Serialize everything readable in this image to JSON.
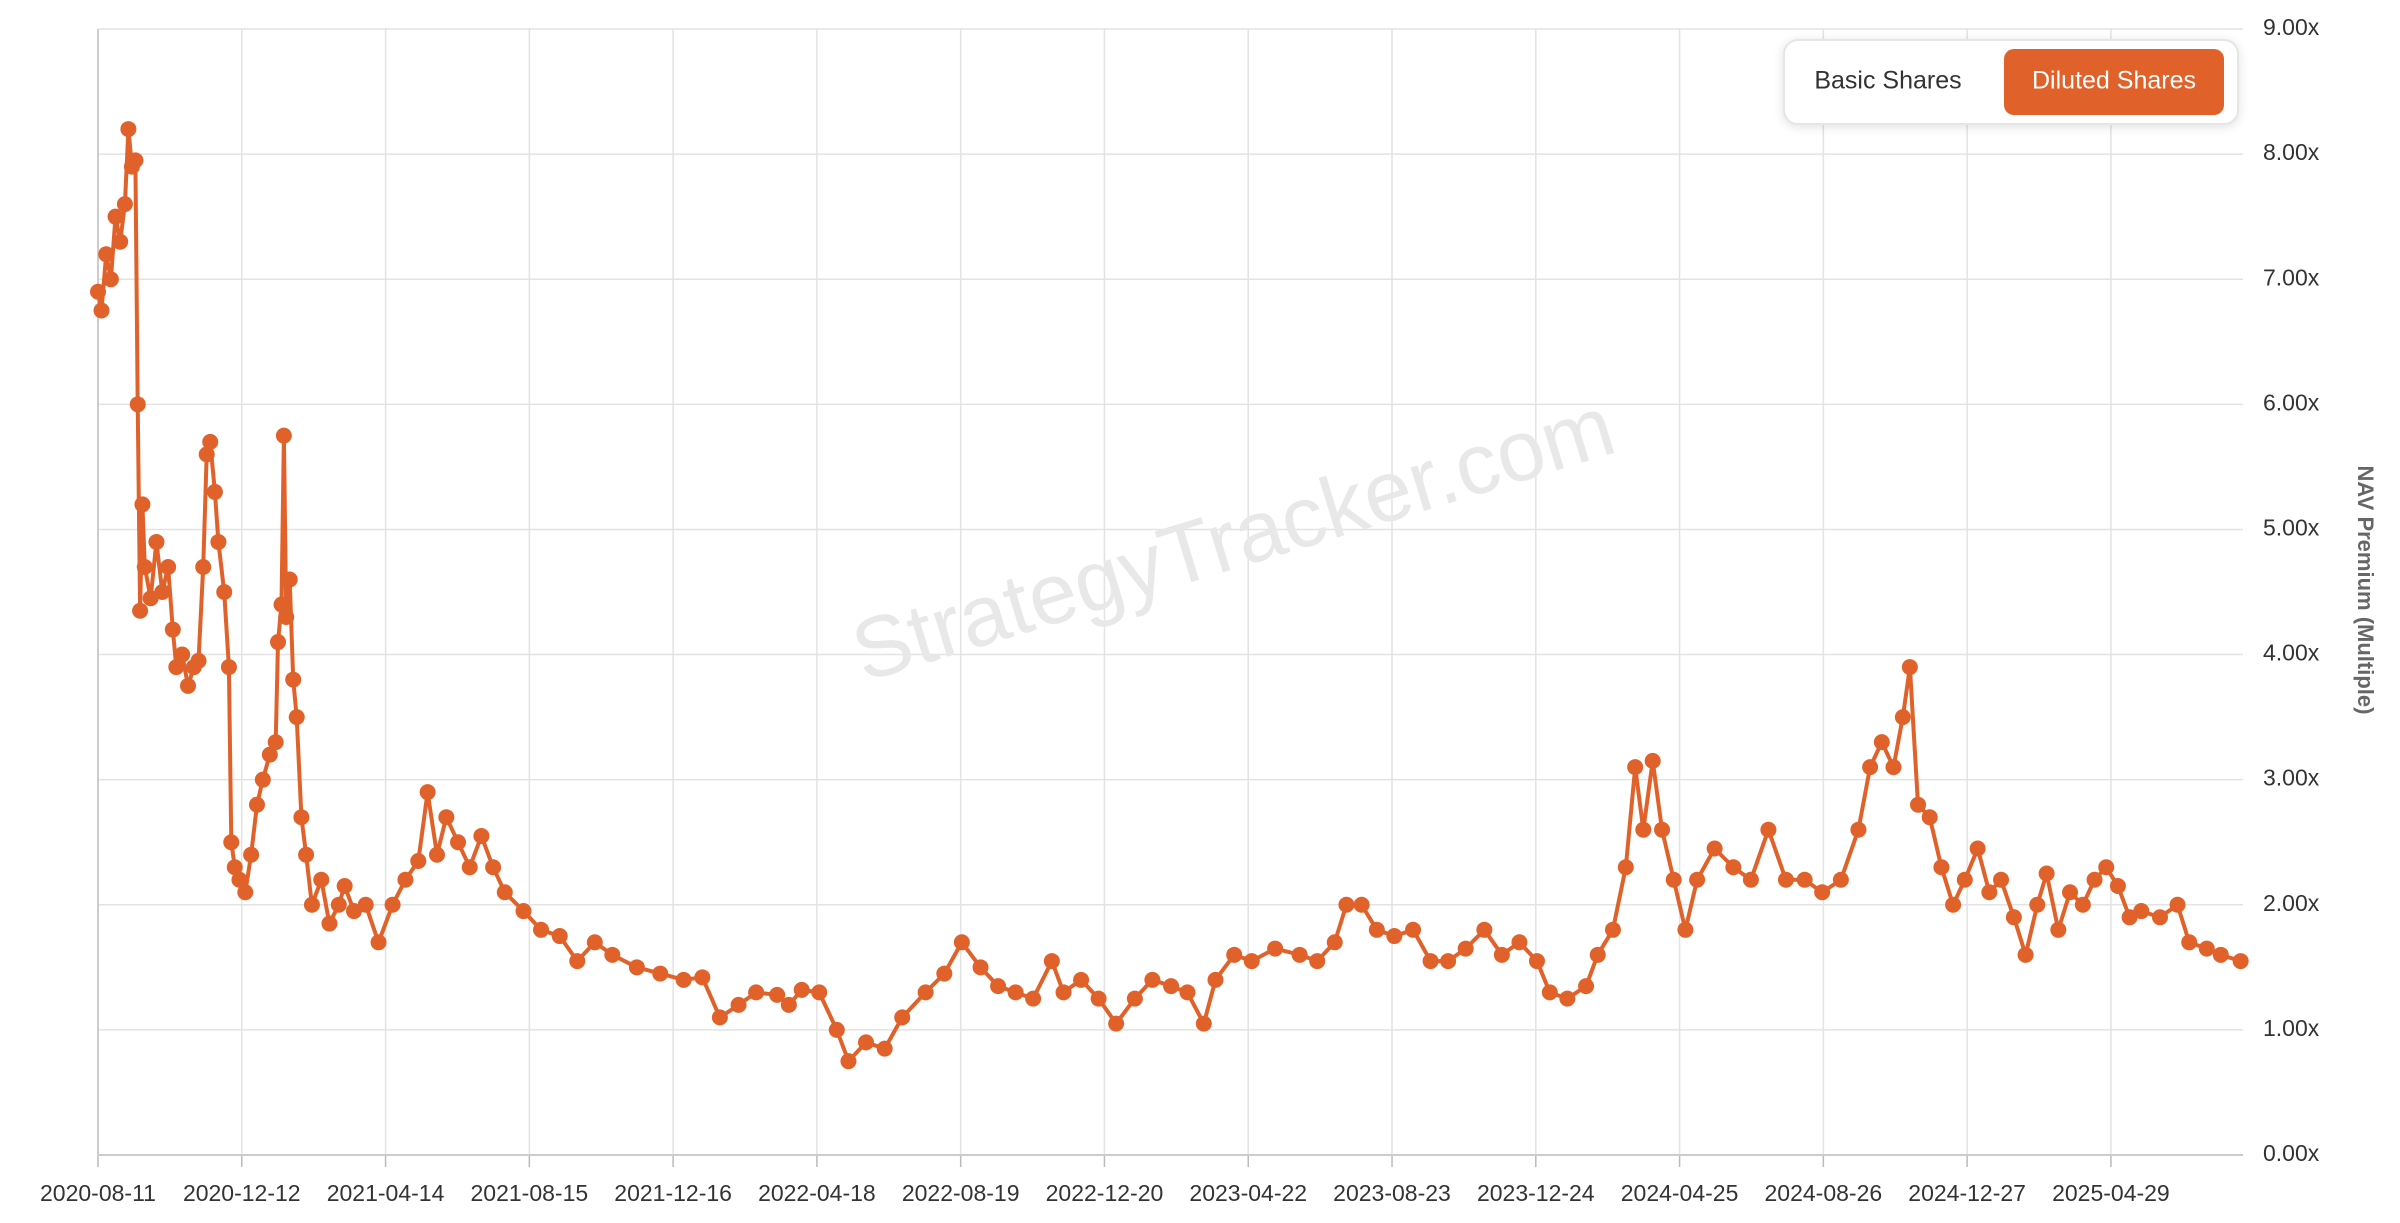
{
  "chart_data": {
    "type": "line",
    "y_axis_label": "NAV Premium (Multiple)",
    "watermark": "StrategyTracker.com",
    "grid": true,
    "y_axis_side": "right",
    "series": [
      {
        "color": "#e0622a",
        "x": [
          "2020-08-11",
          "2020-08-14",
          "2020-08-18",
          "2020-08-22",
          "2020-08-26",
          "2020-08-30",
          "2020-09-03",
          "2020-09-06",
          "2020-09-09",
          "2020-09-12",
          "2020-09-14",
          "2020-09-16",
          "2020-09-18",
          "2020-09-20",
          "2020-09-25",
          "2020-09-30",
          "2020-10-05",
          "2020-10-10",
          "2020-10-14",
          "2020-10-17",
          "2020-10-22",
          "2020-10-27",
          "2020-11-01",
          "2020-11-05",
          "2020-11-09",
          "2020-11-12",
          "2020-11-15",
          "2020-11-19",
          "2020-11-22",
          "2020-11-27",
          "2020-12-01",
          "2020-12-03",
          "2020-12-06",
          "2020-12-10",
          "2020-12-15",
          "2020-12-20",
          "2020-12-25",
          "2020-12-30",
          "2021-01-05",
          "2021-01-10",
          "2021-01-12",
          "2021-01-15",
          "2021-01-17",
          "2021-01-19",
          "2021-01-22",
          "2021-01-25",
          "2021-01-28",
          "2021-02-01",
          "2021-02-05",
          "2021-02-10",
          "2021-02-18",
          "2021-02-25",
          "2021-03-05",
          "2021-03-10",
          "2021-03-18",
          "2021-03-28",
          "2021-04-08",
          "2021-04-20",
          "2021-05-01",
          "2021-05-12",
          "2021-05-20",
          "2021-05-28",
          "2021-06-05",
          "2021-06-15",
          "2021-06-25",
          "2021-07-05",
          "2021-07-15",
          "2021-07-25",
          "2021-08-10",
          "2021-08-25",
          "2021-09-10",
          "2021-09-25",
          "2021-10-10",
          "2021-10-25",
          "2021-11-15",
          "2021-12-05",
          "2021-12-25",
          "2022-01-10",
          "2022-01-25",
          "2022-02-10",
          "2022-02-25",
          "2022-03-15",
          "2022-03-25",
          "2022-04-05",
          "2022-04-20",
          "2022-05-05",
          "2022-05-15",
          "2022-05-30",
          "2022-06-15",
          "2022-06-30",
          "2022-07-20",
          "2022-08-05",
          "2022-08-20",
          "2022-09-05",
          "2022-09-20",
          "2022-10-05",
          "2022-10-20",
          "2022-11-05",
          "2022-11-15",
          "2022-11-30",
          "2022-12-15",
          "2022-12-30",
          "2023-01-15",
          "2023-01-30",
          "2023-02-15",
          "2023-03-01",
          "2023-03-15",
          "2023-03-25",
          "2023-04-10",
          "2023-04-25",
          "2023-05-15",
          "2023-06-05",
          "2023-06-20",
          "2023-07-05",
          "2023-07-15",
          "2023-07-28",
          "2023-08-10",
          "2023-08-25",
          "2023-09-10",
          "2023-09-25",
          "2023-10-10",
          "2023-10-25",
          "2023-11-10",
          "2023-11-25",
          "2023-12-10",
          "2023-12-25",
          "2024-01-05",
          "2024-01-20",
          "2024-02-05",
          "2024-02-15",
          "2024-02-28",
          "2024-03-10",
          "2024-03-18",
          "2024-03-25",
          "2024-04-02",
          "2024-04-10",
          "2024-04-20",
          "2024-04-30",
          "2024-05-10",
          "2024-05-25",
          "2024-06-10",
          "2024-06-25",
          "2024-07-10",
          "2024-07-25",
          "2024-08-10",
          "2024-08-25",
          "2024-09-10",
          "2024-09-25",
          "2024-10-05",
          "2024-10-15",
          "2024-10-25",
          "2024-11-02",
          "2024-11-08",
          "2024-11-15",
          "2024-11-25",
          "2024-12-05",
          "2024-12-15",
          "2024-12-25",
          "2025-01-05",
          "2025-01-15",
          "2025-01-25",
          "2025-02-05",
          "2025-02-15",
          "2025-02-25",
          "2025-03-05",
          "2025-03-15",
          "2025-03-25",
          "2025-04-05",
          "2025-04-15",
          "2025-04-25",
          "2025-05-05",
          "2025-05-15",
          "2025-05-25",
          "2025-06-10",
          "2025-06-25",
          "2025-07-05",
          "2025-07-20",
          "2025-08-01",
          "2025-08-18"
        ],
        "values": [
          6.9,
          6.75,
          7.2,
          7.0,
          7.5,
          7.3,
          7.6,
          8.2,
          7.9,
          7.95,
          6.0,
          4.35,
          5.2,
          4.7,
          4.45,
          4.9,
          4.5,
          4.7,
          4.2,
          3.9,
          4.0,
          3.75,
          3.9,
          3.95,
          4.7,
          5.6,
          5.7,
          5.3,
          4.9,
          4.5,
          3.9,
          2.5,
          2.3,
          2.2,
          2.1,
          2.4,
          2.8,
          3.0,
          3.2,
          3.3,
          4.1,
          4.4,
          5.75,
          4.3,
          4.6,
          3.8,
          3.5,
          2.7,
          2.4,
          2.0,
          2.2,
          1.85,
          2.0,
          2.15,
          1.95,
          2.0,
          1.7,
          2.0,
          2.2,
          2.35,
          2.9,
          2.4,
          2.7,
          2.5,
          2.3,
          2.55,
          2.3,
          2.1,
          1.95,
          1.8,
          1.75,
          1.55,
          1.7,
          1.6,
          1.5,
          1.45,
          1.4,
          1.42,
          1.1,
          1.2,
          1.3,
          1.28,
          1.2,
          1.32,
          1.3,
          1.0,
          0.75,
          0.9,
          0.85,
          1.1,
          1.3,
          1.45,
          1.7,
          1.5,
          1.35,
          1.3,
          1.25,
          1.55,
          1.3,
          1.4,
          1.25,
          1.05,
          1.25,
          1.4,
          1.35,
          1.3,
          1.05,
          1.4,
          1.6,
          1.55,
          1.65,
          1.6,
          1.55,
          1.7,
          2.0,
          2.0,
          1.8,
          1.75,
          1.8,
          1.55,
          1.55,
          1.65,
          1.8,
          1.6,
          1.7,
          1.55,
          1.3,
          1.25,
          1.35,
          1.6,
          1.8,
          2.3,
          3.1,
          2.6,
          3.15,
          2.6,
          2.2,
          1.8,
          2.2,
          2.45,
          2.3,
          2.2,
          2.6,
          2.2,
          2.2,
          2.1,
          2.2,
          2.6,
          3.1,
          3.3,
          3.1,
          3.5,
          3.9,
          2.8,
          2.7,
          2.3,
          2.0,
          2.2,
          2.45,
          2.1,
          2.2,
          1.9,
          1.6,
          2.0,
          2.25,
          1.8,
          2.1,
          2.0,
          2.2,
          2.3,
          2.15,
          1.9,
          1.95,
          1.9,
          2.0,
          1.7,
          1.65,
          1.6,
          1.55
        ]
      }
    ],
    "xlim": [
      "2020-08-11",
      "2025-08-20"
    ],
    "xticks": [
      "2020-08-11",
      "2020-12-12",
      "2021-04-14",
      "2021-08-15",
      "2021-12-16",
      "2022-04-18",
      "2022-08-19",
      "2022-12-20",
      "2023-04-22",
      "2023-08-23",
      "2023-12-24",
      "2024-04-25",
      "2024-08-26",
      "2024-12-27",
      "2025-04-29"
    ],
    "ylim": [
      0,
      9
    ],
    "yticks": [
      {
        "value": 0,
        "label": "0.00x"
      },
      {
        "value": 1,
        "label": "1.00x"
      },
      {
        "value": 2,
        "label": "2.00x"
      },
      {
        "value": 3,
        "label": "3.00x"
      },
      {
        "value": 4,
        "label": "4.00x"
      },
      {
        "value": 5,
        "label": "5.00x"
      },
      {
        "value": 6,
        "label": "6.00x"
      },
      {
        "value": 7,
        "label": "7.00x"
      },
      {
        "value": 8,
        "label": "8.00x"
      },
      {
        "value": 9,
        "label": "9.00x"
      }
    ]
  },
  "controls": {
    "buttons": [
      "Basic Shares",
      "Diluted Shares"
    ],
    "active": 1
  }
}
